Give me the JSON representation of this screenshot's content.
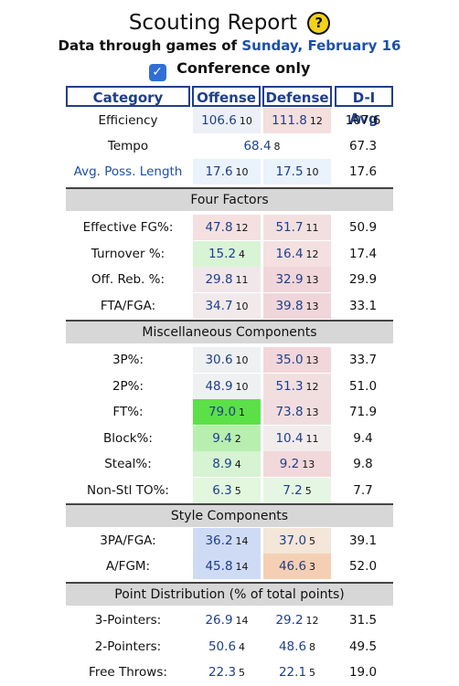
{
  "header": {
    "title": "Scouting Report",
    "help_symbol": "?",
    "subtitle_prefix": "Data through games of",
    "subtitle_date": "Sunday, February 16",
    "conference_label": "Conference only",
    "conference_checked": true,
    "checkbox_symbol": "✓"
  },
  "columns": {
    "category": "Category",
    "offense": "Offense",
    "defense": "Defense",
    "avg": "D-I Avg"
  },
  "top_rows": {
    "efficiency": {
      "label": "Efficiency",
      "off": "106.6",
      "off_rank": "10",
      "def": "111.8",
      "def_rank": "12",
      "avg": "107.6"
    },
    "tempo": {
      "label": "Tempo",
      "value": "68.4",
      "rank": "8",
      "avg": "67.3"
    },
    "poss": {
      "label": "Avg. Poss. Length",
      "off": "17.6",
      "off_rank": "10",
      "def": "17.5",
      "def_rank": "10",
      "avg": "17.6"
    }
  },
  "sections": {
    "four_factors": {
      "title": "Four Factors",
      "rows": [
        {
          "label": "Effective FG%:",
          "off": "47.8",
          "off_rank": "12",
          "def": "51.7",
          "def_rank": "11",
          "avg": "50.9"
        },
        {
          "label": "Turnover %:",
          "off": "15.2",
          "off_rank": "4",
          "def": "16.4",
          "def_rank": "12",
          "avg": "17.4"
        },
        {
          "label": "Off. Reb. %:",
          "off": "29.8",
          "off_rank": "11",
          "def": "32.9",
          "def_rank": "13",
          "avg": "29.9"
        },
        {
          "label": "FTA/FGA:",
          "off": "34.7",
          "off_rank": "10",
          "def": "39.8",
          "def_rank": "13",
          "avg": "33.1"
        }
      ]
    },
    "misc": {
      "title": "Miscellaneous Components",
      "rows": [
        {
          "label": "3P%:",
          "off": "30.6",
          "off_rank": "10",
          "def": "35.0",
          "def_rank": "13",
          "avg": "33.7"
        },
        {
          "label": "2P%:",
          "off": "48.9",
          "off_rank": "10",
          "def": "51.3",
          "def_rank": "12",
          "avg": "51.0"
        },
        {
          "label": "FT%:",
          "off": "79.0",
          "off_rank": "1",
          "def": "73.8",
          "def_rank": "13",
          "avg": "71.9"
        },
        {
          "label": "Block%:",
          "off": "9.4",
          "off_rank": "2",
          "def": "10.4",
          "def_rank": "11",
          "avg": "9.4"
        },
        {
          "label": "Steal%:",
          "off": "8.9",
          "off_rank": "4",
          "def": "9.2",
          "def_rank": "13",
          "avg": "9.8"
        },
        {
          "label": "Non-Stl TO%:",
          "off": "6.3",
          "off_rank": "5",
          "def": "7.2",
          "def_rank": "5",
          "avg": "7.7"
        }
      ]
    },
    "style": {
      "title": "Style Components",
      "rows": [
        {
          "label": "3PA/FGA:",
          "off": "36.2",
          "off_rank": "14",
          "def": "37.0",
          "def_rank": "5",
          "avg": "39.1"
        },
        {
          "label": "A/FGM:",
          "off": "45.8",
          "off_rank": "14",
          "def": "46.6",
          "def_rank": "3",
          "avg": "52.0"
        }
      ]
    },
    "points": {
      "title": "Point Distribution (% of total points)",
      "rows": [
        {
          "label": "3-Pointers:",
          "off": "26.9",
          "off_rank": "14",
          "def": "29.2",
          "def_rank": "12",
          "avg": "31.5"
        },
        {
          "label": "2-Pointers:",
          "off": "50.6",
          "off_rank": "4",
          "def": "48.6",
          "def_rank": "8",
          "avg": "49.5"
        },
        {
          "label": "Free Throws:",
          "off": "22.3",
          "off_rank": "5",
          "def": "22.1",
          "def_rank": "5",
          "avg": "19.0"
        }
      ]
    }
  },
  "colors": {
    "header_border": "#1e3f8a",
    "value_blue": "#1e3f8a",
    "date_blue": "#1e4fa8",
    "section_bg": "#d7d7d7",
    "checkbox_blue": "#2f6fd6",
    "help_yellow": "#f3d21a"
  }
}
